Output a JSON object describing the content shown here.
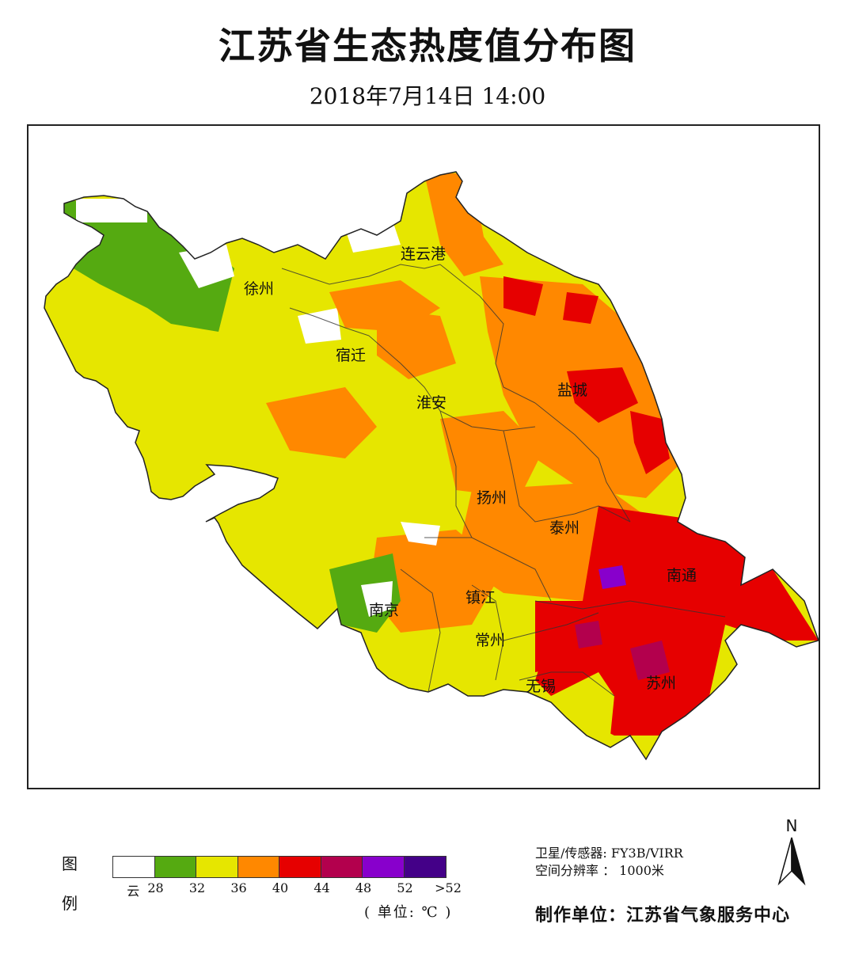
{
  "title": "江苏省生态热度值分布图",
  "subtitle": "2018年7月14日  14:00",
  "cities": [
    {
      "name": "连云港"
    },
    {
      "name": "徐州"
    },
    {
      "name": "宿迁"
    },
    {
      "name": "淮安"
    },
    {
      "name": "盐城"
    },
    {
      "name": "扬州"
    },
    {
      "name": "泰州"
    },
    {
      "name": "南通"
    },
    {
      "name": "镇江"
    },
    {
      "name": "南京"
    },
    {
      "name": "常州"
    },
    {
      "name": "无锡"
    },
    {
      "name": "苏州"
    }
  ],
  "legend": {
    "label_top": "图",
    "label_bottom": "例",
    "colors": [
      "#ffffff",
      "#55aa11",
      "#e6e600",
      "#ff8800",
      "#e60000",
      "#b3004d",
      "#8800cc",
      "#440088"
    ],
    "ticks": [
      "云",
      "28",
      "32",
      "36",
      "40",
      "44",
      "48",
      "52",
      ">52"
    ],
    "unit": "( 单位: ℃ )"
  },
  "meta": {
    "satellite": "卫星/传感器: FY3B/VIRR",
    "resolution": "空间分辨率 ： 1000米",
    "maker": "制作单位：江苏省气象服务中心"
  },
  "north_label": "N"
}
